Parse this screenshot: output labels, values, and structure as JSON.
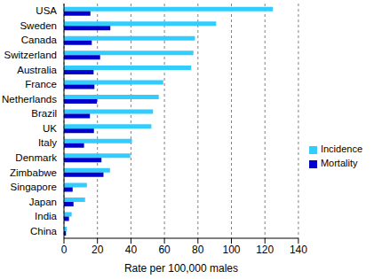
{
  "chart_data": {
    "type": "bar",
    "orientation": "horizontal",
    "x_label": "Rate per 100,000 males",
    "categories": [
      "USA",
      "Sweden",
      "Canada",
      "Switzerland",
      "Australia",
      "France",
      "Netherlands",
      "Brazil",
      "UK",
      "Italy",
      "Denmark",
      "Zimbabwe",
      "Singapore",
      "Japan",
      "India",
      "China"
    ],
    "series": [
      {
        "name": "Incidence",
        "color": "#33ccff",
        "values": [
          124.8,
          90.9,
          78.2,
          77.3,
          76.0,
          59.3,
          56.6,
          53.2,
          52.2,
          40.6,
          39.6,
          27.5,
          13.7,
          12.6,
          4.6,
          1.7
        ]
      },
      {
        "name": "Mortality",
        "color": "#0000cc",
        "values": [
          15.8,
          27.7,
          16.6,
          21.6,
          17.7,
          18.2,
          19.7,
          15.5,
          17.9,
          12.0,
          22.4,
          23.6,
          5.2,
          5.7,
          3.0,
          1.2
        ]
      }
    ],
    "xlim": [
      0,
      140
    ],
    "xticks": [
      0,
      20,
      40,
      60,
      80,
      100,
      120,
      140
    ],
    "grid": true,
    "legend": "right"
  }
}
